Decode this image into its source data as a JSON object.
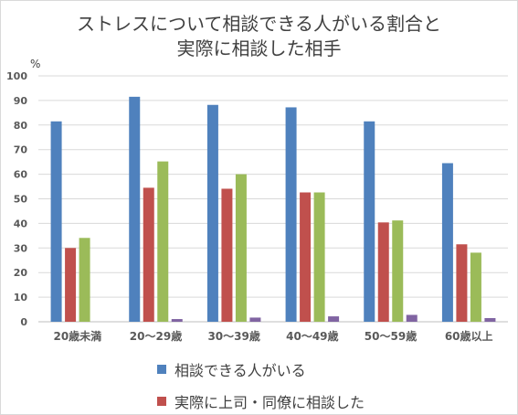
{
  "chart_data": {
    "type": "bar",
    "title_lines": [
      "ストレスについて相談できる人がいる割合と",
      "実際に相談した相手"
    ],
    "unit_label": "%",
    "ylim": [
      0,
      100
    ],
    "yticks": [
      0,
      10,
      20,
      30,
      40,
      50,
      60,
      70,
      80,
      90,
      100
    ],
    "grid": true,
    "legend_position": "bottom",
    "categories": [
      "20歳未満",
      "20～29歳",
      "30～39歳",
      "40～49歳",
      "50～59歳",
      "60歳以上"
    ],
    "series": [
      {
        "name": "相談できる人がいる",
        "color": "#4f81bd",
        "values": [
          81.5,
          91.5,
          88.2,
          87.2,
          81.5,
          64.5
        ]
      },
      {
        "name": "実際に上司・同僚に相談した",
        "color": "#c0504d",
        "values": [
          30,
          54.5,
          54.1,
          52.6,
          40.4,
          31.5
        ]
      },
      {
        "name": "",
        "color": "#9bbb59",
        "values": [
          34.1,
          65.2,
          60,
          52.6,
          41.2,
          28.1
        ]
      },
      {
        "name": "",
        "color": "#8064a2",
        "values": [
          0,
          1.1,
          1.7,
          2.2,
          2.8,
          1.5
        ]
      }
    ]
  }
}
